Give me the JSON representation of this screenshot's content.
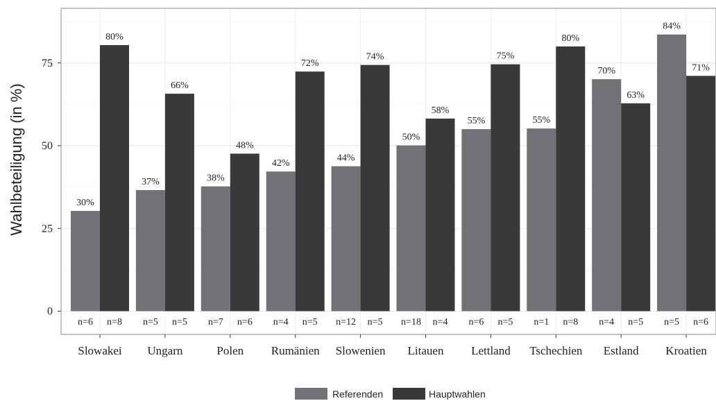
{
  "chart_data": {
    "type": "bar",
    "title": "",
    "xlabel": "",
    "ylabel": "Wahlbeteiligung (in %)",
    "ylim": [
      0,
      90
    ],
    "yticks": [
      0,
      25,
      50,
      75
    ],
    "grid": true,
    "legend_position": "bottom",
    "categories": [
      "Slowakei",
      "Ungarn",
      "Polen",
      "Rumänien",
      "Slowenien",
      "Litauen",
      "Lettland",
      "Tschechien",
      "Estland",
      "Kroatien"
    ],
    "series": [
      {
        "name": "Referenden",
        "color": "#717275",
        "values": [
          30.3,
          36.6,
          37.7,
          42.2,
          43.8,
          50.1,
          55.0,
          55.2,
          70.1,
          83.6
        ],
        "labels": [
          "30%",
          "37%",
          "38%",
          "42%",
          "44%",
          "50%",
          "55%",
          "55%",
          "70%",
          "84%"
        ],
        "n": [
          "n=6",
          "n=5",
          "n=7",
          "n=4",
          "n=12",
          "n=18",
          "n=6",
          "n=1",
          "n=4",
          "n=5"
        ]
      },
      {
        "name": "Hauptwahlen",
        "color": "#393939",
        "values": [
          80.4,
          65.7,
          47.6,
          72.4,
          74.4,
          58.2,
          74.6,
          80.0,
          62.8,
          71.1
        ],
        "labels": [
          "80%",
          "66%",
          "48%",
          "72%",
          "74%",
          "58%",
          "75%",
          "80%",
          "63%",
          "71%"
        ],
        "n": [
          "n=8",
          "n=5",
          "n=6",
          "n=5",
          "n=5",
          "n=4",
          "n=5",
          "n=8",
          "n=5",
          "n=6"
        ]
      }
    ]
  }
}
